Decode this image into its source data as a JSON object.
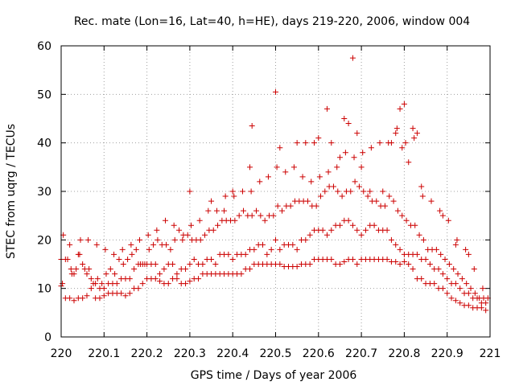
{
  "chart_data": {
    "type": "scatter",
    "title": "Rec. mate (Lon=16, Lat=40, h=HE), days 219-220, 2006, window 004",
    "xlabel": "GPS time / Days of year 2006",
    "ylabel": "STEC from uqrg / TECUs",
    "xlim": [
      220,
      221
    ],
    "ylim": [
      0,
      60
    ],
    "xticks": [
      "220",
      "220.1",
      "220.2",
      "220.3",
      "220.4",
      "220.5",
      "220.6",
      "220.7",
      "220.8",
      "220.9",
      "221"
    ],
    "yticks": [
      "0",
      "10",
      "20",
      "30",
      "40",
      "50",
      "60"
    ],
    "grid": true,
    "marker": "plus",
    "color": "#cc0000",
    "series": [
      {
        "x": [
          220.0,
          220.01,
          220.02,
          220.03,
          220.04,
          220.05,
          220.06,
          220.07,
          220.08,
          220.09,
          220.1,
          220.11,
          220.12,
          220.13,
          220.14,
          220.15,
          220.16,
          220.17,
          220.18,
          220.19,
          220.2,
          220.21,
          220.22,
          220.23,
          220.24,
          220.25,
          220.26,
          220.27,
          220.28,
          220.29,
          220.3,
          220.31,
          220.32,
          220.33,
          220.34,
          220.35,
          220.36,
          220.37,
          220.38,
          220.39,
          220.4,
          220.41,
          220.42,
          220.43,
          220.44,
          220.45,
          220.46,
          220.47,
          220.48,
          220.49,
          220.5,
          220.51,
          220.52,
          220.53,
          220.54,
          220.55,
          220.56,
          220.57,
          220.58,
          220.59,
          220.6,
          220.61,
          220.62,
          220.63,
          220.64,
          220.65,
          220.66,
          220.67,
          220.68,
          220.69,
          220.7,
          220.71,
          220.72,
          220.73,
          220.74,
          220.75,
          220.76,
          220.77,
          220.78,
          220.79,
          220.8,
          220.81,
          220.82,
          220.83,
          220.84,
          220.85,
          220.86,
          220.87,
          220.88,
          220.89,
          220.9,
          220.91,
          220.92,
          220.93,
          220.94,
          220.95,
          220.96,
          220.97,
          220.98,
          220.99,
          220.0,
          220.01,
          220.02,
          220.03,
          220.04,
          220.05,
          220.06,
          220.07,
          220.08,
          220.09,
          220.1,
          220.11,
          220.12,
          220.13,
          220.14,
          220.15,
          220.16,
          220.17,
          220.18,
          220.19,
          220.2,
          220.21,
          220.22,
          220.23,
          220.24,
          220.25,
          220.26,
          220.27,
          220.28,
          220.29,
          220.3,
          220.31,
          220.32,
          220.33,
          220.34,
          220.35,
          220.36,
          220.37,
          220.38,
          220.39,
          220.4,
          220.41,
          220.42,
          220.43,
          220.44,
          220.45,
          220.46,
          220.47,
          220.48,
          220.49,
          220.5,
          220.51,
          220.52,
          220.53,
          220.54,
          220.55,
          220.56,
          220.57,
          220.58,
          220.59,
          220.6,
          220.61,
          220.62,
          220.63,
          220.64,
          220.65,
          220.66,
          220.67,
          220.68,
          220.69,
          220.7,
          220.71,
          220.72,
          220.73,
          220.74,
          220.75,
          220.76,
          220.77,
          220.78,
          220.79,
          220.8,
          220.81,
          220.82,
          220.83,
          220.84,
          220.85,
          220.86,
          220.87,
          220.88,
          220.89,
          220.9,
          220.91,
          220.92,
          220.93,
          220.94,
          220.95,
          220.96,
          220.97,
          220.98,
          220.99,
          220.005,
          220.015,
          220.025,
          220.035,
          220.045,
          220.055,
          220.065,
          220.075,
          220.085,
          220.095,
          220.105,
          220.115,
          220.125,
          220.135,
          220.145,
          220.155,
          220.165,
          220.175,
          220.185,
          220.195,
          220.205,
          220.215,
          220.225,
          220.235,
          220.245,
          220.255,
          220.265,
          220.275,
          220.285,
          220.295,
          220.305,
          220.315,
          220.325,
          220.335,
          220.345,
          220.355,
          220.365,
          220.375,
          220.385,
          220.395,
          220.405,
          220.415,
          220.425,
          220.435,
          220.445,
          220.455,
          220.465,
          220.475,
          220.485,
          220.495,
          220.505,
          220.515,
          220.525,
          220.535,
          220.545,
          220.555,
          220.565,
          220.575,
          220.585,
          220.595,
          220.605,
          220.615,
          220.625,
          220.635,
          220.645,
          220.655,
          220.665,
          220.675,
          220.685,
          220.695,
          220.705,
          220.715,
          220.725,
          220.735,
          220.745,
          220.755,
          220.765,
          220.775,
          220.785,
          220.795,
          220.805,
          220.815,
          220.825,
          220.835,
          220.845,
          220.855,
          220.865,
          220.875,
          220.885,
          220.895,
          220.905,
          220.915,
          220.925,
          220.935,
          220.945,
          220.955,
          220.965,
          220.975,
          220.985,
          220.995,
          220.003,
          220.023,
          220.043,
          220.063,
          220.083,
          220.103,
          220.123,
          220.143,
          220.163,
          220.183,
          220.203,
          220.223,
          220.243,
          220.263,
          220.283,
          220.303,
          220.323,
          220.343,
          220.363,
          220.383,
          220.403,
          220.423,
          220.443,
          220.463,
          220.483,
          220.503,
          220.523,
          220.543,
          220.563,
          220.583,
          220.603,
          220.623,
          220.643,
          220.663,
          220.683,
          220.703,
          220.723,
          220.743,
          220.763,
          220.783,
          220.803,
          220.823,
          220.843,
          220.863,
          220.883,
          220.903,
          220.923,
          220.943,
          220.963,
          220.983,
          220.3,
          220.35,
          220.38,
          220.4,
          220.44,
          220.445,
          220.5,
          220.51,
          220.55,
          220.57,
          220.59,
          220.6,
          220.62,
          220.63,
          220.65,
          220.66,
          220.67,
          220.68,
          220.69,
          220.7,
          220.72,
          220.75,
          220.77,
          220.78,
          220.79,
          220.795,
          220.8,
          220.81,
          220.82,
          220.83,
          220.84,
          220.89,
          220.92,
          220.95
        ],
        "y": [
          10.5,
          8,
          8,
          7.5,
          8,
          8,
          8.5,
          10,
          8,
          8,
          8.5,
          9,
          9,
          9,
          9,
          8.5,
          9,
          10,
          10,
          11,
          12,
          12,
          12,
          11.5,
          11,
          11,
          12,
          12,
          11,
          11,
          11.5,
          12,
          12,
          13,
          13,
          13,
          13,
          13,
          13,
          13,
          13,
          13,
          13,
          14,
          14,
          15,
          15,
          15,
          15,
          15,
          15,
          15,
          14.5,
          14.5,
          14.5,
          14.5,
          15,
          15,
          15,
          16,
          16,
          16,
          16,
          16,
          15,
          15,
          15.5,
          16,
          16,
          15,
          16,
          16,
          16,
          16,
          16,
          16,
          16,
          15.5,
          15.5,
          15,
          15.5,
          15,
          14,
          12,
          12,
          11,
          11,
          11,
          10,
          10,
          9,
          8,
          7.5,
          7,
          6.5,
          6.5,
          6,
          6,
          6,
          5.5,
          16,
          16,
          19,
          13,
          17,
          15,
          13,
          12,
          11,
          10,
          10,
          11,
          11,
          11,
          12,
          12,
          12,
          14,
          15,
          15,
          15,
          15,
          15,
          13,
          14,
          15,
          15,
          13,
          14,
          14,
          15,
          16,
          15,
          15,
          16,
          16,
          15,
          17,
          17,
          17,
          16,
          17,
          17,
          17,
          18,
          18,
          19,
          19,
          17,
          18,
          20,
          18,
          19,
          19,
          19,
          18,
          20,
          20,
          21,
          22,
          22,
          22,
          21,
          22,
          23,
          23,
          24,
          24,
          23,
          22,
          21,
          22,
          23,
          23,
          22,
          22,
          22,
          20,
          19,
          18,
          17,
          17,
          17,
          17,
          16,
          16,
          15,
          14,
          14,
          13,
          12,
          11,
          11,
          10,
          9,
          9,
          8,
          8,
          7,
          7,
          21,
          16,
          13,
          14,
          20,
          14,
          14,
          11,
          12,
          11,
          13,
          14,
          13,
          16,
          15,
          16,
          17,
          18,
          15,
          15,
          18,
          19,
          20,
          19,
          19,
          18,
          20,
          22,
          21,
          21,
          20,
          20,
          20,
          21,
          22,
          22,
          23,
          24,
          24,
          24,
          24,
          25,
          26,
          25,
          25,
          26,
          25,
          24,
          25,
          25,
          27,
          26,
          27,
          27,
          28,
          28,
          28,
          28,
          27,
          27,
          29,
          30,
          31,
          31,
          30,
          29,
          30,
          30,
          32,
          31,
          30,
          29,
          28,
          28,
          27,
          27,
          29,
          28,
          26,
          25,
          24,
          23,
          23,
          21,
          20,
          18,
          18,
          18,
          17,
          16,
          15,
          14,
          13,
          12,
          11,
          10,
          9,
          8,
          8,
          8,
          11,
          14,
          17,
          20,
          19,
          18,
          17,
          18,
          19,
          20,
          21,
          22,
          24,
          23,
          20,
          23,
          24,
          26,
          26,
          29,
          29,
          30,
          30,
          32,
          33,
          35,
          34,
          35,
          33,
          32,
          33,
          34,
          35,
          38,
          37,
          38,
          39,
          40,
          40,
          43,
          40,
          41,
          29,
          28,
          26,
          24,
          20,
          18,
          14,
          10,
          30,
          28,
          26,
          30,
          35,
          43.5,
          50.5,
          39,
          40,
          40,
          40,
          41,
          47,
          40,
          37,
          45,
          44,
          57.5,
          42,
          35,
          30,
          30,
          40,
          42,
          47,
          39,
          48,
          36,
          43,
          42,
          31,
          25,
          19,
          17
        ]
      }
    ]
  }
}
